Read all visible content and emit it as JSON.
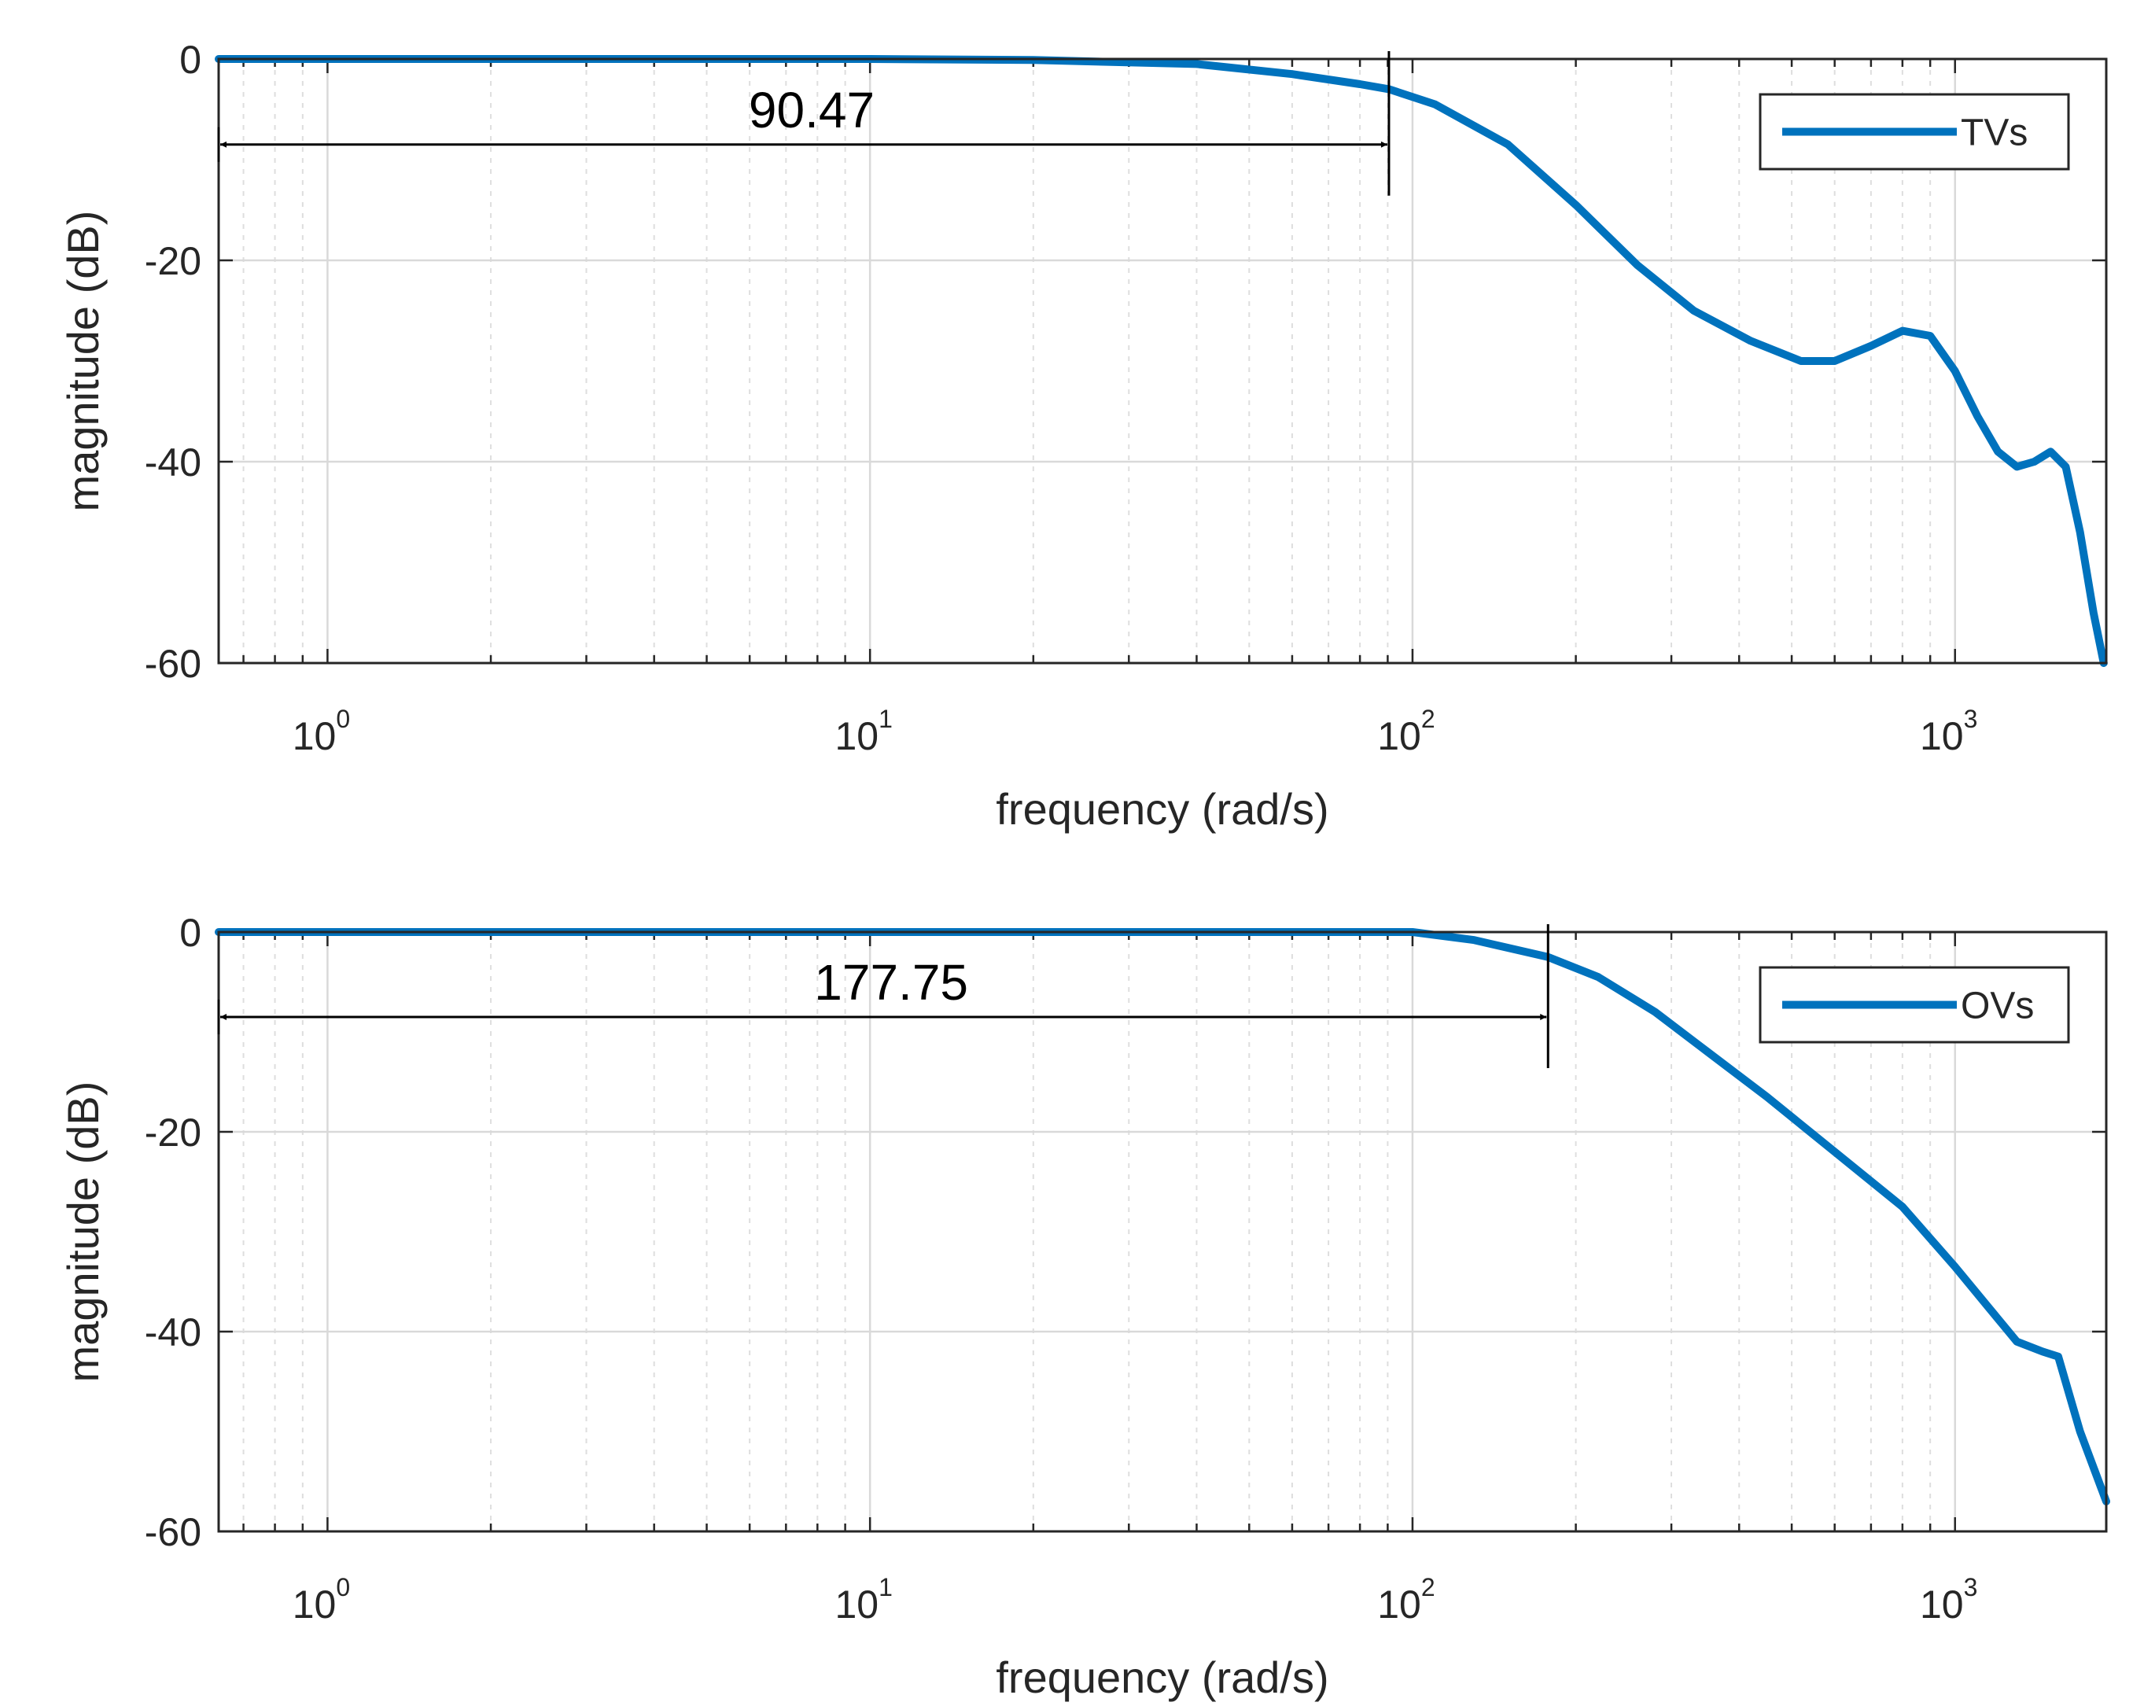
{
  "chart_data": [
    {
      "type": "line",
      "xlabel": "frequency (rad/s)",
      "ylabel": "magnitude (dB)",
      "xscale": "log",
      "xlim": [
        0.63,
        1900
      ],
      "ylim": [
        -60,
        0
      ],
      "yticks": [
        0,
        -20,
        -40,
        -60
      ],
      "xticks": [
        {
          "value": 1,
          "base": "10",
          "exp": "0"
        },
        {
          "value": 10,
          "base": "10",
          "exp": "1"
        },
        {
          "value": 100,
          "base": "10",
          "exp": "2"
        },
        {
          "value": 1000,
          "base": "10",
          "exp": "3"
        }
      ],
      "grid": true,
      "legend_position": "top-right",
      "series": [
        {
          "name": "TVs",
          "color": "#0072BD",
          "x": [
            0.63,
            1,
            2,
            5,
            10,
            20,
            40,
            60,
            80,
            90.47,
            110,
            150,
            200,
            260,
            330,
            420,
            520,
            600,
            700,
            800,
            900,
            1000,
            1100,
            1200,
            1300,
            1400,
            1500,
            1600,
            1700,
            1800,
            1880
          ],
          "y": [
            0,
            0,
            0,
            0,
            0,
            -0.1,
            -0.5,
            -1.5,
            -2.5,
            -3,
            -4.5,
            -8.5,
            -14.5,
            -20.5,
            -25,
            -28,
            -30,
            -30,
            -28.5,
            -27,
            -27.5,
            -31,
            -35.5,
            -39,
            -40.5,
            -40,
            -39,
            -40.5,
            -47,
            -55,
            -60
          ]
        }
      ],
      "annotation": {
        "label": "90.47",
        "x_from": 0.63,
        "x_to": 90.47,
        "y": -8.5
      }
    },
    {
      "type": "line",
      "xlabel": "frequency (rad/s)",
      "ylabel": "magnitude (dB)",
      "xscale": "log",
      "xlim": [
        0.63,
        1900
      ],
      "ylim": [
        -60,
        0
      ],
      "yticks": [
        0,
        -20,
        -40,
        -60
      ],
      "xticks": [
        {
          "value": 1,
          "base": "10",
          "exp": "0"
        },
        {
          "value": 10,
          "base": "10",
          "exp": "1"
        },
        {
          "value": 100,
          "base": "10",
          "exp": "2"
        },
        {
          "value": 1000,
          "base": "10",
          "exp": "3"
        }
      ],
      "grid": true,
      "legend_position": "top-right",
      "series": [
        {
          "name": "OVs",
          "color": "#0072BD",
          "x": [
            0.63,
            1,
            5,
            10,
            50,
            100,
            130,
            177.75,
            220,
            280,
            350,
            450,
            600,
            800,
            1000,
            1150,
            1300,
            1450,
            1550,
            1700,
            1900
          ],
          "y": [
            0,
            0,
            0,
            0,
            0,
            0,
            -0.8,
            -2.5,
            -4.5,
            -8,
            -12,
            -16.5,
            -22,
            -27.5,
            -33.5,
            -37.5,
            -41,
            -42,
            -42.5,
            -50,
            -57
          ]
        }
      ],
      "annotation": {
        "label": "177.75",
        "x_from": 0.63,
        "x_to": 177.75,
        "y": -8.5
      }
    }
  ]
}
